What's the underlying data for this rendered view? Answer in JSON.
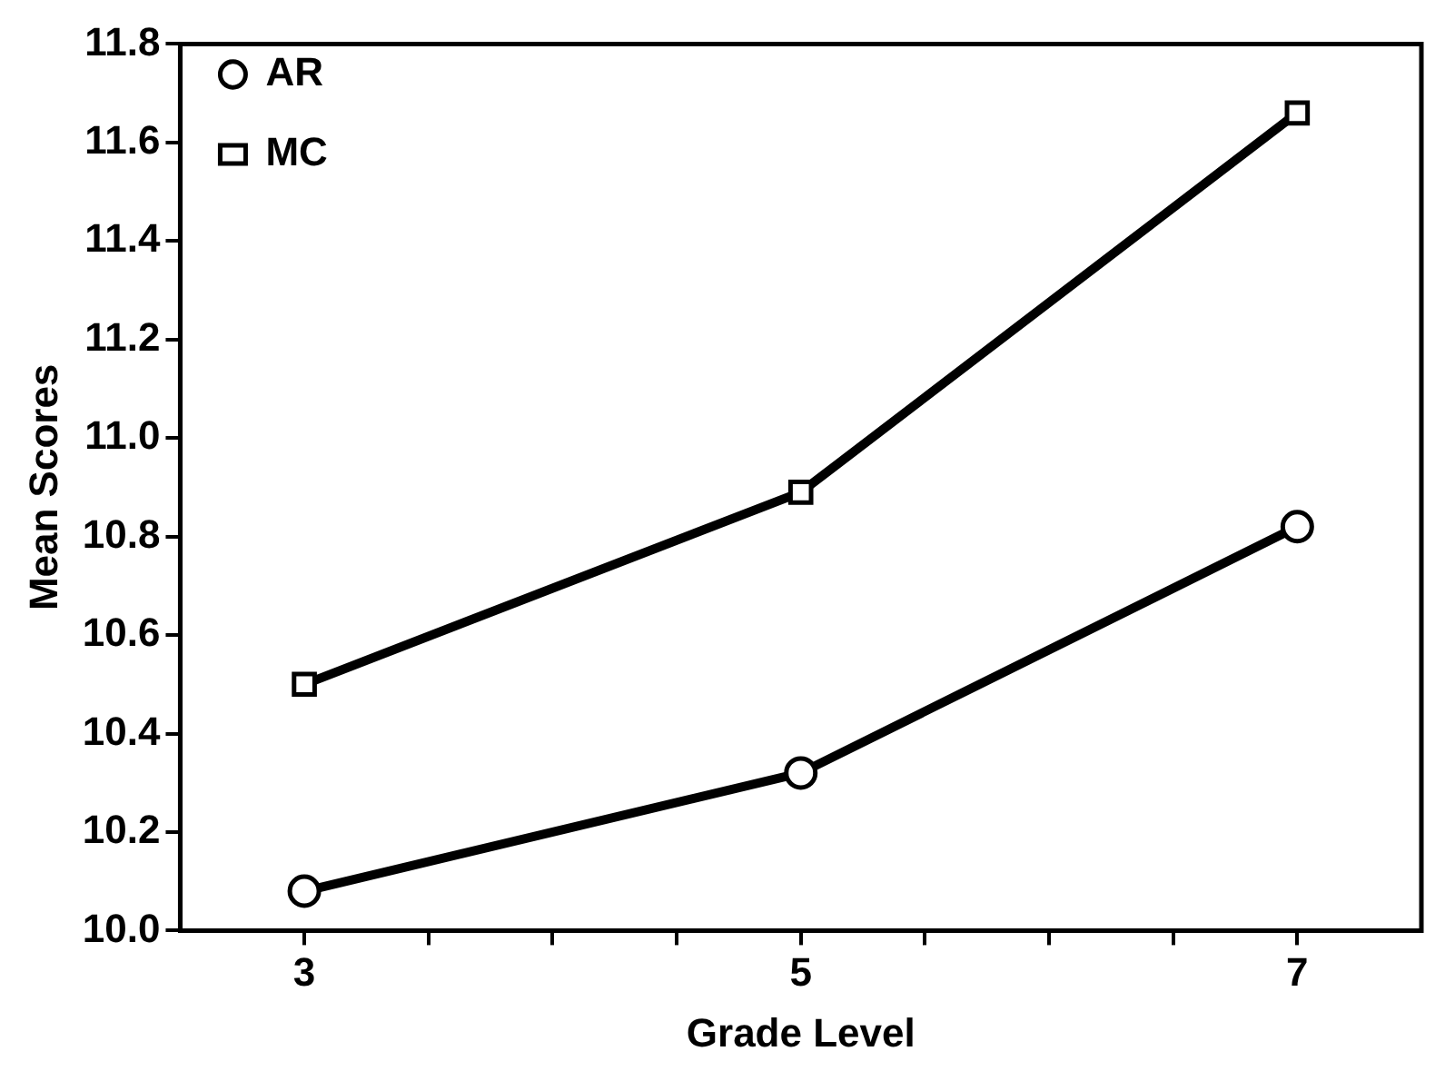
{
  "chart_data": {
    "type": "line",
    "xlabel": "Grade Level",
    "ylabel": "Mean Scores",
    "x": [
      3,
      5,
      7
    ],
    "series": [
      {
        "name": "AR",
        "color": "#000000",
        "marker": "circle",
        "values": [
          10.08,
          10.32,
          10.82
        ]
      },
      {
        "name": "MC",
        "color": "#000000",
        "marker": "square",
        "values": [
          10.5,
          10.89,
          11.66
        ]
      }
    ],
    "xlim": [
      2.5,
      7.5
    ],
    "xticks": [
      3,
      {
        "value": 3.5,
        "label": null
      },
      {
        "value": 4,
        "label": null
      },
      {
        "value": 4.5,
        "label": null
      },
      5,
      {
        "value": 5.5,
        "label": null
      },
      {
        "value": 6,
        "label": null
      },
      {
        "value": 6.5,
        "label": null
      },
      7
    ],
    "ylim": [
      10.0,
      11.8
    ],
    "yticks": [
      {
        "value": 10,
        "label": "10.0"
      },
      10.2,
      10.4,
      10.6,
      10.8,
      {
        "value": 11,
        "label": "11.0"
      },
      11.2,
      11.4,
      11.6,
      11.8
    ],
    "grid": false,
    "legend": "top left",
    "line_style": "solid"
  }
}
